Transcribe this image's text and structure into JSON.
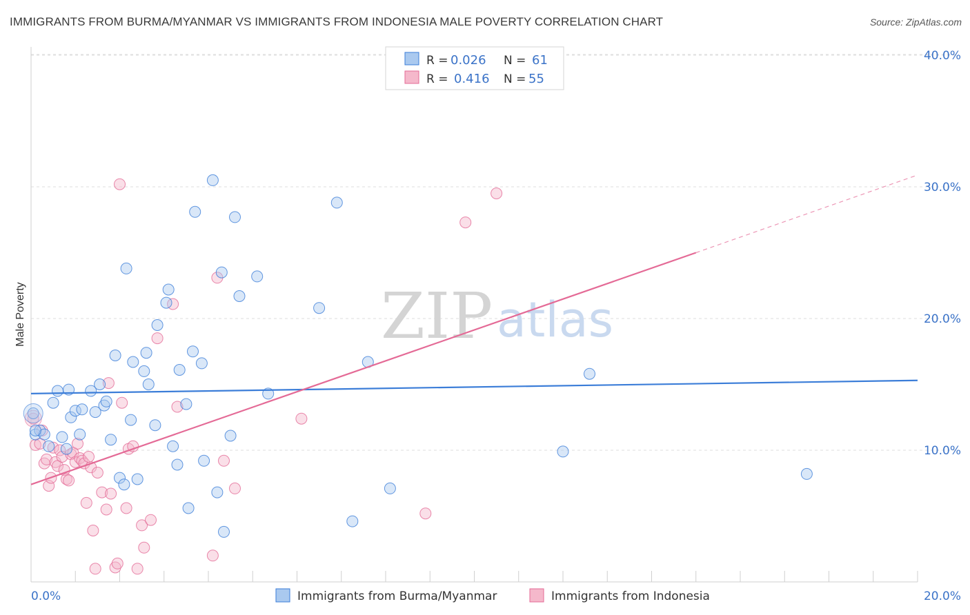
{
  "title": "IMMIGRANTS FROM BURMA/MYANMAR VS IMMIGRANTS FROM INDONESIA MALE POVERTY CORRELATION CHART",
  "source": "Source: ZipAtlas.com",
  "watermark": {
    "zip": "ZIP",
    "atlas": "atlas"
  },
  "colors": {
    "blue": "#3b7dd8",
    "blue_fill": "#aac9ef",
    "pink": "#e46a96",
    "pink_fill": "#f5b8cb",
    "tick_text": "#3b73c8"
  },
  "legend_top": {
    "rows": [
      {
        "r_label": "R =",
        "r_value": "0.026",
        "n_label": "N =",
        "n_value": "61"
      },
      {
        "r_label": "R =",
        "r_value": "0.416",
        "n_label": "N =",
        "n_value": "55"
      }
    ]
  },
  "legend_bottom": [
    "Immigrants from Burma/Myanmar",
    "Immigrants from Indonesia"
  ],
  "chart_data": {
    "type": "scatter",
    "xlabel": "",
    "ylabel": "Male Poverty",
    "xlim": [
      0,
      20
    ],
    "ylim": [
      0,
      41
    ],
    "x_tick_labels": [
      "0.0%",
      "20.0%"
    ],
    "y_tick_values": [
      10,
      20,
      30,
      40
    ],
    "y_tick_labels": [
      "10.0%",
      "20.0%",
      "30.0%",
      "40.0%"
    ],
    "series": [
      {
        "name": "Immigrants from Burma/Myanmar",
        "color": "#3b7dd8",
        "trend": {
          "x0": 0,
          "y0": 14.3,
          "x1": 20,
          "y1": 15.3
        },
        "points": [
          [
            0.05,
            12.8
          ],
          [
            0.1,
            11.2
          ],
          [
            0.2,
            11.5
          ],
          [
            0.3,
            11.2
          ],
          [
            0.4,
            10.3
          ],
          [
            0.5,
            13.6
          ],
          [
            0.6,
            14.5
          ],
          [
            0.7,
            11.0
          ],
          [
            0.8,
            10.1
          ],
          [
            0.85,
            14.6
          ],
          [
            0.9,
            12.5
          ],
          [
            1.0,
            13.0
          ],
          [
            1.1,
            11.2
          ],
          [
            1.15,
            13.1
          ],
          [
            1.35,
            14.5
          ],
          [
            1.45,
            12.9
          ],
          [
            1.55,
            15.0
          ],
          [
            1.65,
            13.4
          ],
          [
            1.7,
            13.7
          ],
          [
            1.8,
            10.8
          ],
          [
            1.9,
            17.2
          ],
          [
            2.0,
            7.9
          ],
          [
            2.1,
            7.4
          ],
          [
            2.15,
            23.8
          ],
          [
            2.25,
            12.3
          ],
          [
            2.3,
            16.7
          ],
          [
            2.4,
            7.8
          ],
          [
            2.55,
            16.0
          ],
          [
            2.6,
            17.4
          ],
          [
            2.65,
            15.0
          ],
          [
            2.8,
            11.9
          ],
          [
            2.85,
            19.5
          ],
          [
            3.05,
            21.2
          ],
          [
            3.1,
            22.2
          ],
          [
            3.2,
            10.3
          ],
          [
            3.3,
            8.9
          ],
          [
            3.35,
            16.1
          ],
          [
            3.5,
            13.5
          ],
          [
            3.55,
            5.6
          ],
          [
            3.65,
            17.5
          ],
          [
            3.7,
            28.1
          ],
          [
            3.85,
            16.6
          ],
          [
            3.9,
            9.2
          ],
          [
            4.1,
            30.5
          ],
          [
            4.2,
            6.8
          ],
          [
            4.3,
            23.5
          ],
          [
            4.35,
            3.8
          ],
          [
            4.5,
            11.1
          ],
          [
            4.6,
            27.7
          ],
          [
            4.7,
            21.7
          ],
          [
            5.1,
            23.2
          ],
          [
            5.35,
            14.3
          ],
          [
            6.5,
            20.8
          ],
          [
            6.9,
            28.8
          ],
          [
            7.25,
            4.6
          ],
          [
            7.6,
            16.7
          ],
          [
            8.1,
            7.1
          ],
          [
            12.0,
            9.9
          ],
          [
            12.6,
            15.8
          ],
          [
            17.5,
            8.2
          ],
          [
            0.1,
            11.5
          ]
        ]
      },
      {
        "name": "Immigrants from Indonesia",
        "color": "#e46a96",
        "trend": {
          "x0": 0,
          "y0": 7.4,
          "x1": 15.0,
          "y1": 25.0,
          "dash_x1": 20,
          "dash_y1": 30.9
        },
        "points": [
          [
            0.05,
            12.4
          ],
          [
            0.1,
            10.4
          ],
          [
            0.2,
            10.5
          ],
          [
            0.25,
            11.5
          ],
          [
            0.3,
            9.0
          ],
          [
            0.35,
            9.3
          ],
          [
            0.4,
            7.3
          ],
          [
            0.45,
            7.9
          ],
          [
            0.5,
            10.2
          ],
          [
            0.55,
            9.1
          ],
          [
            0.6,
            8.8
          ],
          [
            0.65,
            10.0
          ],
          [
            0.7,
            9.5
          ],
          [
            0.75,
            8.5
          ],
          [
            0.8,
            7.8
          ],
          [
            0.85,
            7.7
          ],
          [
            0.9,
            9.7
          ],
          [
            0.95,
            9.8
          ],
          [
            1.0,
            9.1
          ],
          [
            1.05,
            10.5
          ],
          [
            1.1,
            9.4
          ],
          [
            1.15,
            9.2
          ],
          [
            1.2,
            9.0
          ],
          [
            1.25,
            6.0
          ],
          [
            1.3,
            9.5
          ],
          [
            1.35,
            8.7
          ],
          [
            1.4,
            3.9
          ],
          [
            1.45,
            1.0
          ],
          [
            1.5,
            8.3
          ],
          [
            1.6,
            6.8
          ],
          [
            1.7,
            5.5
          ],
          [
            1.75,
            15.1
          ],
          [
            1.8,
            6.7
          ],
          [
            1.9,
            1.1
          ],
          [
            1.95,
            1.4
          ],
          [
            2.0,
            30.2
          ],
          [
            2.05,
            13.6
          ],
          [
            2.15,
            5.6
          ],
          [
            2.2,
            10.1
          ],
          [
            2.3,
            10.3
          ],
          [
            2.4,
            1.0
          ],
          [
            2.5,
            4.3
          ],
          [
            2.55,
            2.6
          ],
          [
            2.7,
            4.7
          ],
          [
            2.85,
            18.5
          ],
          [
            3.2,
            21.1
          ],
          [
            3.3,
            13.3
          ],
          [
            4.1,
            2.0
          ],
          [
            4.2,
            23.1
          ],
          [
            4.35,
            9.2
          ],
          [
            4.6,
            7.1
          ],
          [
            6.1,
            12.4
          ],
          [
            8.9,
            5.2
          ],
          [
            9.8,
            27.3
          ],
          [
            10.5,
            29.5
          ]
        ]
      }
    ]
  }
}
